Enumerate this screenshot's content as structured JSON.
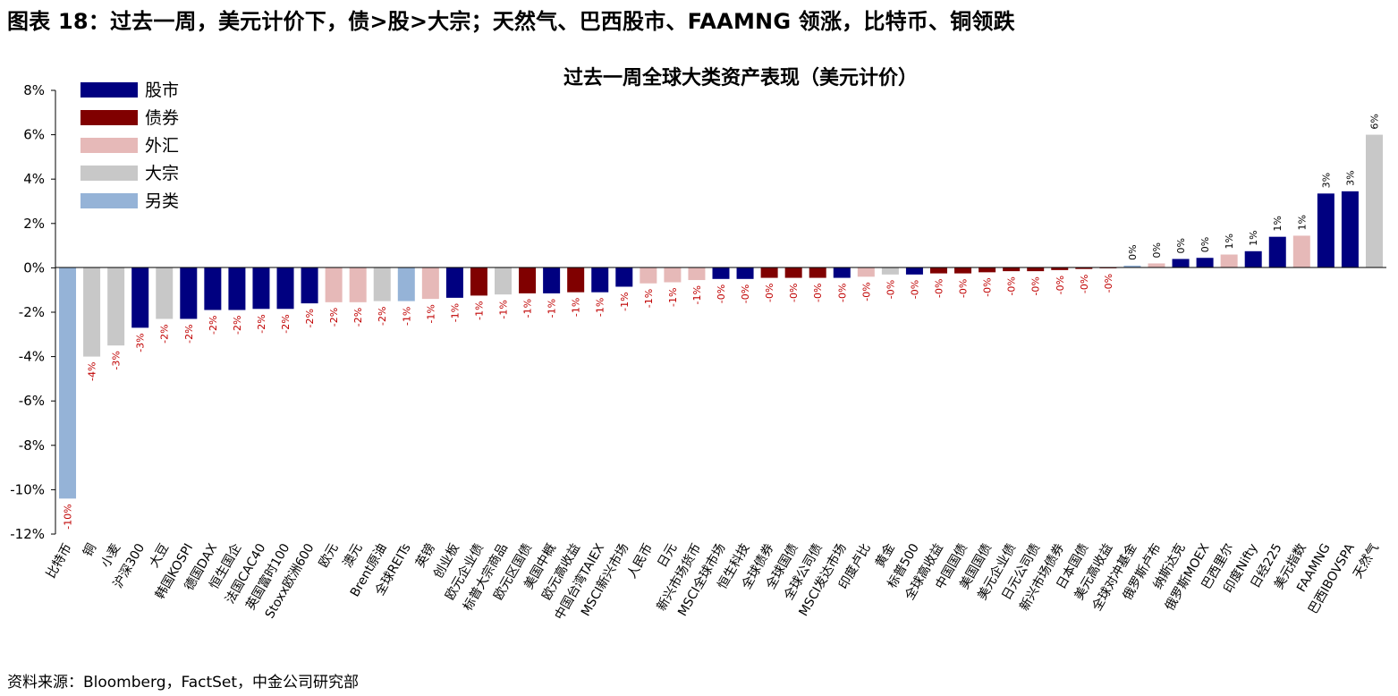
{
  "figure_title": "图表 18：过去一周，美元计价下，债>股>大宗；天然气、巴西股市、FAAMNG 领涨，比特币、铜领跌",
  "source": "资料来源：Bloomberg，FactSet，中金公司研究部",
  "colors": {
    "股市": "#000080",
    "债券": "#800000",
    "外汇": "#E6B9B8",
    "大宗": "#C8C8C8",
    "另类": "#95B3D7",
    "negative_label": "#C00000",
    "positive_label": "#000000"
  },
  "chart_data": {
    "type": "bar",
    "title": "过去一周全球大类资产表现（美元计价）",
    "ylim": [
      -12,
      8
    ],
    "yticks": [
      -12,
      -10,
      -8,
      -6,
      -4,
      -2,
      0,
      2,
      4,
      6,
      8
    ],
    "ytick_labels": [
      "-12%",
      "-10%",
      "-8%",
      "-6%",
      "-4%",
      "-2%",
      "0%",
      "2%",
      "4%",
      "6%",
      "8%"
    ],
    "grid": false,
    "legend_position": "top-left",
    "legend": [
      "股市",
      "债券",
      "外汇",
      "大宗",
      "另类"
    ],
    "categories": [
      "比特币",
      "铜",
      "小麦",
      "沪深300",
      "大豆",
      "韩国KOSPI",
      "德国DAX",
      "恒生国企",
      "法国CAC40",
      "英国富时100",
      "Stoxx欧洲600",
      "欧元",
      "澳元",
      "Brent原油",
      "全球REITs",
      "英镑",
      "创业板",
      "欧元企业债",
      "标普大宗商品",
      "欧元区国债",
      "美国中概",
      "欧元高收益",
      "中国台湾TAIEX",
      "MSCI新兴市场",
      "人民币",
      "日元",
      "新兴市场货币",
      "MSCI全球市场",
      "恒生科技",
      "全球债券",
      "全球国债",
      "全球公司债",
      "MSCI发达市场",
      "印度卢比",
      "黄金",
      "标普500",
      "全球高收益",
      "中国国债",
      "美国国债",
      "美元企业债",
      "日元公司债",
      "新兴市场债券",
      "日本国债",
      "美元高收益",
      "全球对冲基金",
      "俄罗斯卢布",
      "纳斯达克",
      "俄罗斯MOEX",
      "巴西里尔",
      "印度Nifty",
      "日经225",
      "美元指数",
      "FAAMNG",
      "巴西IBOVSPA",
      "天然气"
    ],
    "values": [
      -10.4,
      -4.0,
      -3.5,
      -2.7,
      -2.3,
      -2.3,
      -1.9,
      -1.9,
      -1.85,
      -1.85,
      -1.6,
      -1.55,
      -1.55,
      -1.5,
      -1.5,
      -1.4,
      -1.35,
      -1.25,
      -1.2,
      -1.15,
      -1.15,
      -1.1,
      -1.1,
      -0.85,
      -0.7,
      -0.65,
      -0.55,
      -0.5,
      -0.5,
      -0.45,
      -0.45,
      -0.45,
      -0.45,
      -0.4,
      -0.3,
      -0.3,
      -0.25,
      -0.25,
      -0.2,
      -0.15,
      -0.15,
      -0.1,
      -0.05,
      -0.02,
      0.1,
      0.2,
      0.4,
      0.45,
      0.6,
      0.75,
      1.4,
      1.45,
      3.35,
      3.45,
      6.0
    ],
    "labels": [
      "-10%",
      "-4%",
      "-3%",
      "-3%",
      "-2%",
      "-2%",
      "-2%",
      "-2%",
      "-2%",
      "-2%",
      "-2%",
      "-2%",
      "-2%",
      "-2%",
      "-1%",
      "-1%",
      "-1%",
      "-1%",
      "-1%",
      "-1%",
      "-1%",
      "-1%",
      "-1%",
      "-1%",
      "-1%",
      "-1%",
      "-1%",
      "-0%",
      "-0%",
      "-0%",
      "-0%",
      "-0%",
      "-0%",
      "-0%",
      "-0%",
      "-0%",
      "-0%",
      "-0%",
      "-0%",
      "-0%",
      "-0%",
      "-0%",
      "-0%",
      "-0%",
      "0%",
      "0%",
      "0%",
      "0%",
      "1%",
      "1%",
      "1%",
      "1%",
      "3%",
      "3%",
      "6%"
    ],
    "asset_class": [
      "另类",
      "大宗",
      "大宗",
      "股市",
      "大宗",
      "股市",
      "股市",
      "股市",
      "股市",
      "股市",
      "股市",
      "外汇",
      "外汇",
      "大宗",
      "另类",
      "外汇",
      "股市",
      "债券",
      "大宗",
      "债券",
      "股市",
      "债券",
      "股市",
      "股市",
      "外汇",
      "外汇",
      "外汇",
      "股市",
      "股市",
      "债券",
      "债券",
      "债券",
      "股市",
      "外汇",
      "大宗",
      "股市",
      "债券",
      "债券",
      "债券",
      "债券",
      "债券",
      "债券",
      "债券",
      "债券",
      "另类",
      "外汇",
      "股市",
      "股市",
      "外汇",
      "股市",
      "股市",
      "外汇",
      "股市",
      "股市",
      "大宗"
    ]
  }
}
